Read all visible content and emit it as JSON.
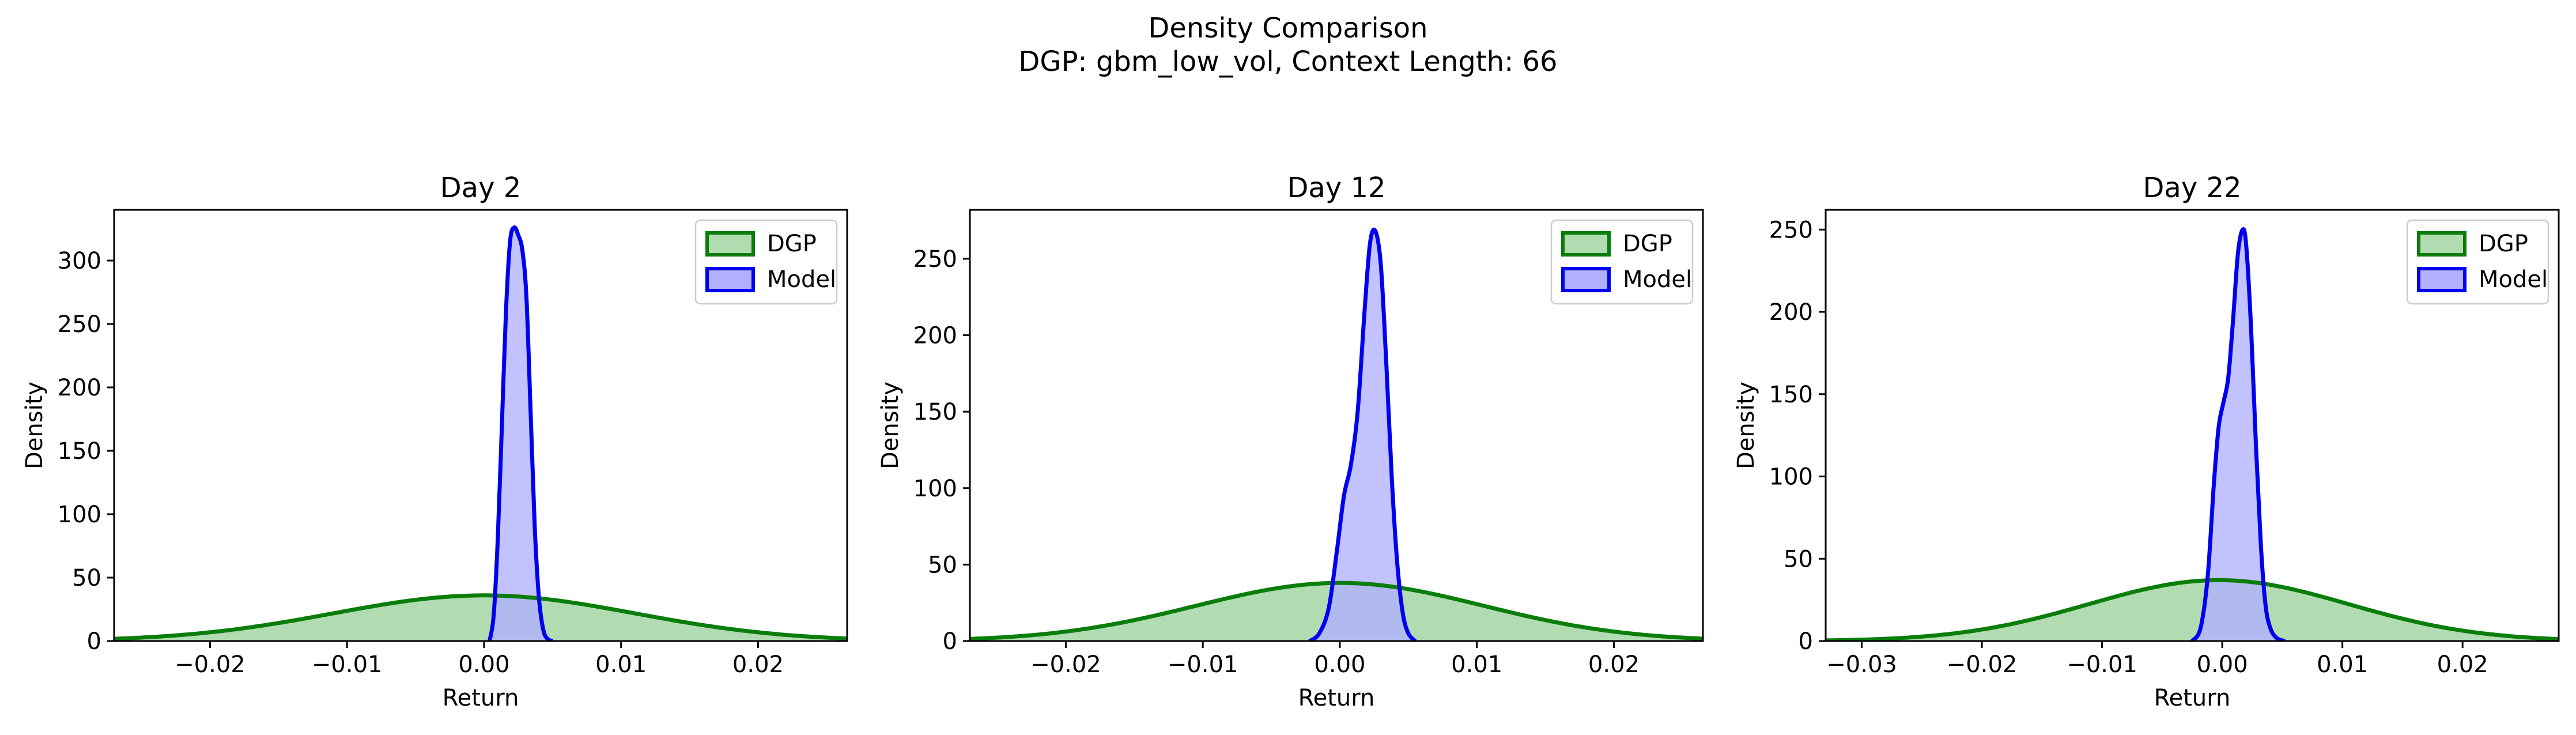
{
  "figure": {
    "title": "Density Comparison",
    "subtitle": "DGP: gbm_low_vol, Context Length: 66"
  },
  "colors": {
    "dgp_line": "#0a7d0a",
    "dgp_fill": "#b1dcb1",
    "model_line": "#0000ee",
    "model_fill": "#b1b1ff",
    "overlap_fill": "#7f8ec8"
  },
  "chart_data": [
    {
      "type": "area",
      "title": "Day 2",
      "xlabel": "Return",
      "ylabel": "Density",
      "xlim": [
        -0.027,
        0.0265
      ],
      "ylim": [
        0,
        340
      ],
      "xticks": [
        -0.02,
        -0.01,
        0.0,
        0.01,
        0.02
      ],
      "xtick_labels": [
        "−0.02",
        "−0.01",
        "0.00",
        "0.01",
        "0.02"
      ],
      "yticks": [
        0,
        50,
        100,
        150,
        200,
        250,
        300
      ],
      "legend": "top-right",
      "series": [
        {
          "name": "DGP",
          "kind": "normal",
          "mean": 0.0,
          "sd": 0.011,
          "peak": 36
        },
        {
          "name": "Model",
          "kind": "curve",
          "x": [
            0.0004,
            0.0007,
            0.001,
            0.0013,
            0.0016,
            0.0019,
            0.0022,
            0.0025,
            0.0028,
            0.0031,
            0.0034,
            0.0037,
            0.004,
            0.0043,
            0.0046,
            0.005
          ],
          "y": [
            0,
            20,
            80,
            170,
            260,
            315,
            326,
            320,
            308,
            270,
            180,
            90,
            35,
            10,
            2,
            0
          ]
        }
      ]
    },
    {
      "type": "area",
      "title": "Day 12",
      "xlabel": "Return",
      "ylabel": "Density",
      "xlim": [
        -0.027,
        0.0265
      ],
      "ylim": [
        0,
        282
      ],
      "xticks": [
        -0.02,
        -0.01,
        0.0,
        0.01,
        0.02
      ],
      "xtick_labels": [
        "−0.02",
        "−0.01",
        "0.00",
        "0.01",
        "0.02"
      ],
      "yticks": [
        0,
        50,
        100,
        150,
        200,
        250
      ],
      "legend": "top-right",
      "series": [
        {
          "name": "DGP",
          "kind": "normal",
          "mean": 0.0,
          "sd": 0.0105,
          "peak": 38
        },
        {
          "name": "Model",
          "kind": "curve",
          "x": [
            -0.0022,
            -0.0015,
            -0.0008,
            -0.0002,
            0.0003,
            0.0008,
            0.0013,
            0.0018,
            0.0022,
            0.0026,
            0.003,
            0.0034,
            0.0038,
            0.0042,
            0.0046,
            0.005,
            0.0055
          ],
          "y": [
            0,
            5,
            22,
            60,
            95,
            115,
            150,
            215,
            260,
            268,
            245,
            180,
            105,
            50,
            18,
            5,
            0
          ]
        }
      ]
    },
    {
      "type": "area",
      "title": "Day 22",
      "xlabel": "Return",
      "ylabel": "Density",
      "xlim": [
        -0.033,
        0.028
      ],
      "ylim": [
        0,
        262
      ],
      "xticks": [
        -0.03,
        -0.02,
        -0.01,
        0.0,
        0.01,
        0.02
      ],
      "xtick_labels": [
        "−0.03",
        "−0.02",
        "−0.01",
        "0.00",
        "0.01",
        "0.02"
      ],
      "yticks": [
        0,
        50,
        100,
        150,
        200,
        250
      ],
      "legend": "top-right",
      "series": [
        {
          "name": "DGP",
          "kind": "normal",
          "mean": -0.0003,
          "sd": 0.0108,
          "peak": 37
        },
        {
          "name": "Model",
          "kind": "curve",
          "x": [
            -0.0025,
            -0.0018,
            -0.0012,
            -0.0007,
            -0.0003,
            0.0001,
            0.0005,
            0.0009,
            0.0013,
            0.0017,
            0.002,
            0.0024,
            0.0028,
            0.0032,
            0.0036,
            0.004,
            0.0045,
            0.0052
          ],
          "y": [
            0,
            8,
            40,
            95,
            130,
            145,
            160,
            195,
            235,
            250,
            240,
            190,
            120,
            60,
            22,
            8,
            2,
            0
          ]
        }
      ]
    }
  ]
}
